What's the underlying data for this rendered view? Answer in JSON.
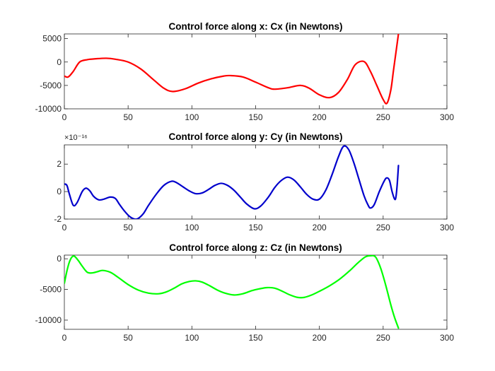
{
  "chart_data": [
    {
      "type": "line",
      "title": "Control force along x: Cx (in Newtons)",
      "xlim": [
        0,
        300
      ],
      "ylim": [
        -10000,
        6000
      ],
      "xticks": [
        0,
        50,
        100,
        150,
        200,
        250,
        300
      ],
      "yticks": [
        5000,
        0,
        -5000,
        -10000
      ],
      "ytick_labels": [
        "5000",
        "0",
        "-5000",
        "-10000"
      ],
      "exponent_label": "",
      "grid": false,
      "series": [
        {
          "color": "#ff0000",
          "x": [
            0,
            3,
            7,
            12,
            18,
            25,
            33,
            40,
            50,
            60,
            70,
            78,
            85,
            95,
            105,
            115,
            125,
            130,
            140,
            150,
            160,
            165,
            175,
            185,
            192,
            200,
            208,
            215,
            222,
            228,
            235,
            240,
            245,
            250,
            253,
            256,
            258,
            260,
            262
          ],
          "y": [
            -3000,
            -3200,
            -2000,
            0,
            500,
            700,
            800,
            600,
            0,
            -1500,
            -3800,
            -5600,
            -6300,
            -5700,
            -4500,
            -3600,
            -3000,
            -2900,
            -3200,
            -4300,
            -5500,
            -5800,
            -5500,
            -5000,
            -5600,
            -7000,
            -7600,
            -6500,
            -3700,
            -600,
            100,
            -2000,
            -5000,
            -8000,
            -8800,
            -6000,
            -2000,
            2000,
            6000
          ]
        }
      ]
    },
    {
      "type": "line",
      "title": "Control force along y: Cy (in Newtons)",
      "xlim": [
        0,
        300
      ],
      "ylim": [
        -2,
        3.4
      ],
      "xticks": [
        0,
        50,
        100,
        150,
        200,
        250,
        300
      ],
      "yticks": [
        2,
        0,
        -2
      ],
      "ytick_labels": [
        "2",
        "0",
        "-2"
      ],
      "exponent_label": "×10⁻¹⁶",
      "grid": false,
      "series": [
        {
          "color": "#0000cc",
          "x": [
            0,
            2,
            4,
            7,
            10,
            14,
            17,
            20,
            23,
            27,
            31,
            36,
            40,
            43,
            47,
            51,
            55,
            58,
            62,
            66,
            72,
            78,
            84,
            88,
            93,
            98,
            103,
            108,
            113,
            118,
            123,
            128,
            133,
            138,
            143,
            149,
            154,
            160,
            165,
            170,
            175,
            180,
            185,
            190,
            195,
            200,
            205,
            210,
            215,
            219,
            223,
            227,
            231,
            235,
            238,
            240,
            243,
            247,
            251,
            253,
            255,
            257,
            259,
            260,
            261,
            262
          ],
          "y": [
            0.55,
            0.45,
            -0.2,
            -1.0,
            -0.8,
            0.0,
            0.25,
            0.05,
            -0.35,
            -0.6,
            -0.55,
            -0.4,
            -0.5,
            -0.9,
            -1.4,
            -1.8,
            -2.0,
            -1.95,
            -1.6,
            -1.0,
            -0.2,
            0.45,
            0.75,
            0.65,
            0.35,
            0.05,
            -0.15,
            -0.1,
            0.15,
            0.45,
            0.6,
            0.45,
            0.1,
            -0.4,
            -0.9,
            -1.25,
            -1.05,
            -0.4,
            0.3,
            0.8,
            1.05,
            0.85,
            0.35,
            -0.2,
            -0.55,
            -0.55,
            0.1,
            1.25,
            2.55,
            3.3,
            3.05,
            2.1,
            0.9,
            -0.3,
            -0.95,
            -1.2,
            -0.95,
            0.0,
            0.8,
            1.0,
            0.8,
            0.0,
            -0.55,
            -0.4,
            0.5,
            1.9
          ]
        }
      ]
    },
    {
      "type": "line",
      "title": "Control force along z: Cz (in Newtons)",
      "xlim": [
        0,
        300
      ],
      "ylim": [
        -11500,
        600
      ],
      "xticks": [
        0,
        50,
        100,
        150,
        200,
        250,
        300
      ],
      "yticks": [
        0,
        -5000,
        -10000
      ],
      "ytick_labels": [
        "0",
        "-5000",
        "-10000"
      ],
      "exponent_label": "",
      "grid": false,
      "series": [
        {
          "color": "#00ff00",
          "x": [
            0,
            2,
            4,
            6,
            8,
            11,
            14,
            18,
            22,
            26,
            30,
            36,
            42,
            50,
            58,
            66,
            74,
            80,
            86,
            92,
            98,
            103,
            108,
            114,
            120,
            126,
            133,
            140,
            147,
            153,
            159,
            165,
            171,
            177,
            183,
            188,
            194,
            200,
            208,
            216,
            224,
            230,
            236,
            240,
            244,
            248,
            252,
            256,
            259,
            262
          ],
          "y": [
            -4000,
            -2000,
            -500,
            300,
            400,
            -300,
            -1200,
            -2200,
            -2300,
            -2100,
            -1900,
            -2200,
            -3000,
            -4200,
            -5100,
            -5600,
            -5700,
            -5400,
            -4800,
            -4100,
            -3700,
            -3600,
            -3800,
            -4400,
            -5100,
            -5600,
            -5900,
            -5700,
            -5200,
            -4900,
            -4700,
            -4800,
            -5300,
            -5900,
            -6300,
            -6300,
            -5900,
            -5300,
            -4400,
            -3300,
            -1900,
            -700,
            300,
            500,
            300,
            -1500,
            -4300,
            -7500,
            -9600,
            -11300
          ]
        }
      ]
    }
  ]
}
